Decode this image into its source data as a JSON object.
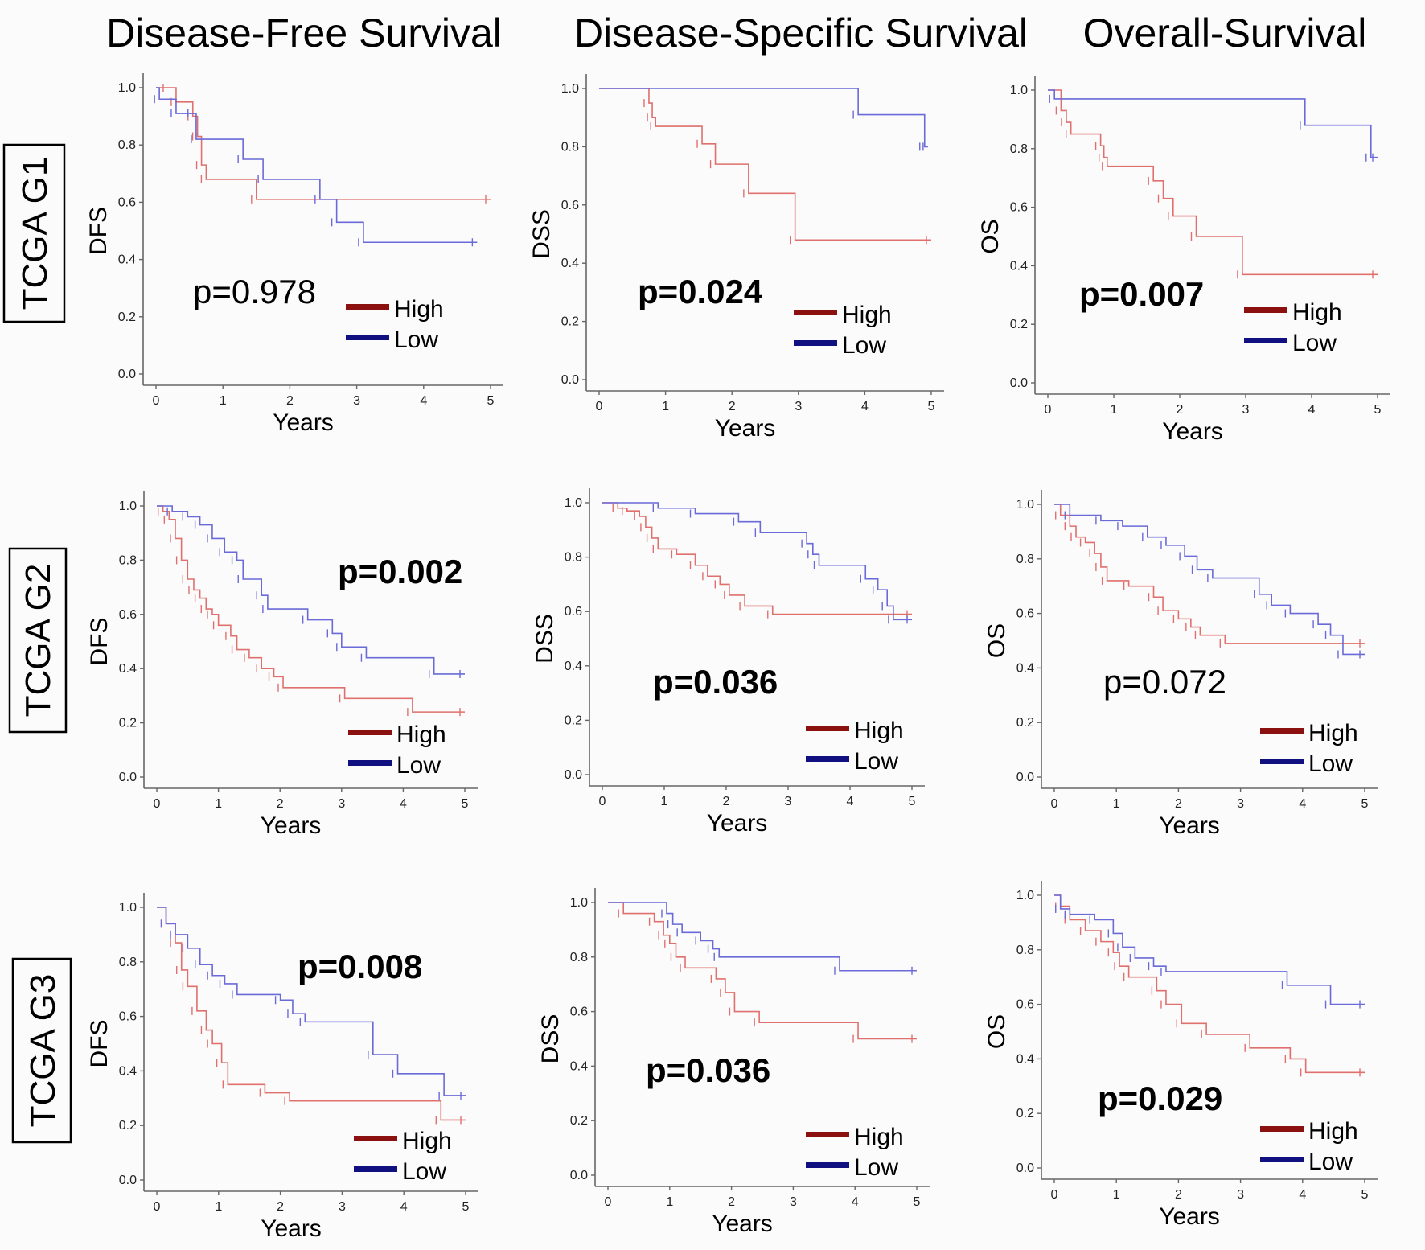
{
  "column_titles": [
    "Disease-Free Survival",
    "Disease-Specific Survival",
    "Overall-Survival"
  ],
  "row_labels": [
    "TCGA G1",
    "TCGA G2",
    "TCGA G3"
  ],
  "colors": {
    "high": "#e0706e",
    "low": "#6a6ad8",
    "legend_high": "#8b1010",
    "legend_low": "#101080"
  },
  "chart_data": [
    {
      "type": "line",
      "step": true,
      "row": "TCGA G1",
      "column": "Disease-Free Survival",
      "xlabel": "Years",
      "ylabel": "DFS",
      "xlim": [
        0,
        5
      ],
      "ylim": [
        0,
        1
      ],
      "xticks": [
        "0",
        "1",
        "2",
        "3",
        "4",
        "5"
      ],
      "yticks": [
        "0.0",
        "0.2",
        "0.4",
        "0.6",
        "0.8",
        "1.0"
      ],
      "annotation": "p=0.978",
      "annotation_bold": false,
      "legend": [
        "High",
        "Low"
      ],
      "legend_position": "bottom-right",
      "series": [
        {
          "name": "High",
          "x": [
            0,
            0.18,
            0.3,
            0.55,
            0.62,
            0.68,
            0.75,
            1.5,
            5.0
          ],
          "y": [
            1.0,
            1.0,
            0.95,
            0.9,
            0.83,
            0.73,
            0.68,
            0.61,
            0.61
          ]
        },
        {
          "name": "Low",
          "x": [
            0,
            0.05,
            0.3,
            0.55,
            0.6,
            1.3,
            1.6,
            2.45,
            2.7,
            3.1,
            4.8
          ],
          "y": [
            1.0,
            0.96,
            0.91,
            0.91,
            0.82,
            0.75,
            0.68,
            0.61,
            0.53,
            0.46,
            0.46
          ]
        }
      ]
    },
    {
      "type": "line",
      "step": true,
      "row": "TCGA G1",
      "column": "Disease-Specific Survival",
      "xlabel": "Years",
      "ylabel": "DSS",
      "xlim": [
        0,
        5
      ],
      "ylim": [
        0,
        1
      ],
      "xticks": [
        "0",
        "1",
        "2",
        "3",
        "4",
        "5"
      ],
      "yticks": [
        "0.0",
        "0.2",
        "0.4",
        "0.6",
        "0.8",
        "1.0"
      ],
      "annotation": "p=0.024",
      "annotation_bold": true,
      "legend": [
        "High",
        "Low"
      ],
      "legend_position": "bottom-right",
      "series": [
        {
          "name": "High",
          "x": [
            0,
            0.75,
            0.8,
            0.85,
            1.55,
            1.75,
            2.25,
            2.95,
            5.0
          ],
          "y": [
            1.0,
            0.95,
            0.9,
            0.87,
            0.81,
            0.74,
            0.64,
            0.48,
            0.48
          ]
        },
        {
          "name": "Low",
          "x": [
            0,
            3.9,
            4.9,
            4.95
          ],
          "y": [
            1.0,
            0.91,
            0.8,
            0.8
          ]
        }
      ]
    },
    {
      "type": "line",
      "step": true,
      "row": "TCGA G1",
      "column": "Overall-Survival",
      "xlabel": "Years",
      "ylabel": "OS",
      "xlim": [
        0,
        5
      ],
      "ylim": [
        0,
        1
      ],
      "xticks": [
        "0",
        "1",
        "2",
        "3",
        "4",
        "5"
      ],
      "yticks": [
        "0.0",
        "0.2",
        "0.4",
        "0.6",
        "0.8",
        "1.0"
      ],
      "annotation": "p=0.007",
      "annotation_bold": true,
      "legend": [
        "High",
        "Low"
      ],
      "legend_position": "bottom-right",
      "series": [
        {
          "name": "High",
          "x": [
            0,
            0.2,
            0.28,
            0.35,
            0.8,
            0.85,
            0.9,
            1.6,
            1.75,
            1.9,
            2.25,
            2.95,
            5.0
          ],
          "y": [
            1.0,
            0.93,
            0.89,
            0.85,
            0.81,
            0.77,
            0.74,
            0.69,
            0.63,
            0.57,
            0.5,
            0.37,
            0.37
          ]
        },
        {
          "name": "Low",
          "x": [
            0,
            0.1,
            3.9,
            4.9,
            5.0
          ],
          "y": [
            1.0,
            0.97,
            0.88,
            0.77,
            0.77
          ]
        }
      ]
    },
    {
      "type": "line",
      "step": true,
      "row": "TCGA G2",
      "column": "Disease-Free Survival",
      "xlabel": "Years",
      "ylabel": "DFS",
      "xlim": [
        0,
        5
      ],
      "ylim": [
        0,
        1
      ],
      "xticks": [
        "0",
        "1",
        "2",
        "3",
        "4",
        "5"
      ],
      "yticks": [
        "0.0",
        "0.2",
        "0.4",
        "0.6",
        "0.8",
        "1.0"
      ],
      "annotation": "p=0.002",
      "annotation_bold": true,
      "legend": [
        "High",
        "Low"
      ],
      "legend_position": "bottom-right",
      "series": [
        {
          "name": "High",
          "x": [
            0,
            0.1,
            0.2,
            0.3,
            0.4,
            0.5,
            0.6,
            0.7,
            0.8,
            0.9,
            1.0,
            1.2,
            1.3,
            1.5,
            1.7,
            1.9,
            2.05,
            3.05,
            4.15,
            5.0
          ],
          "y": [
            1.0,
            0.98,
            0.95,
            0.88,
            0.8,
            0.73,
            0.69,
            0.66,
            0.62,
            0.6,
            0.56,
            0.52,
            0.47,
            0.44,
            0.4,
            0.37,
            0.33,
            0.29,
            0.24,
            0.24
          ]
        },
        {
          "name": "Low",
          "x": [
            0,
            0.25,
            0.5,
            0.7,
            0.9,
            1.1,
            1.3,
            1.4,
            1.7,
            1.8,
            2.45,
            2.85,
            3.0,
            3.4,
            4.5,
            5.0
          ],
          "y": [
            1.0,
            0.98,
            0.96,
            0.93,
            0.88,
            0.83,
            0.8,
            0.73,
            0.67,
            0.62,
            0.58,
            0.53,
            0.48,
            0.44,
            0.38,
            0.38
          ]
        }
      ]
    },
    {
      "type": "line",
      "step": true,
      "row": "TCGA G2",
      "column": "Disease-Specific Survival",
      "xlabel": "Years",
      "ylabel": "DSS",
      "xlim": [
        0,
        5
      ],
      "ylim": [
        0,
        1
      ],
      "xticks": [
        "0",
        "1",
        "2",
        "3",
        "4",
        "5"
      ],
      "yticks": [
        "0.0",
        "0.2",
        "0.4",
        "0.6",
        "0.8",
        "1.0"
      ],
      "annotation": "p=0.036",
      "annotation_bold": true,
      "legend": [
        "High",
        "Low"
      ],
      "legend_position": "bottom-right",
      "series": [
        {
          "name": "High",
          "x": [
            0,
            0.25,
            0.4,
            0.6,
            0.7,
            0.8,
            0.9,
            1.2,
            1.5,
            1.7,
            1.9,
            2.05,
            2.3,
            2.75,
            5.0
          ],
          "y": [
            1.0,
            0.98,
            0.97,
            0.95,
            0.91,
            0.87,
            0.83,
            0.81,
            0.77,
            0.73,
            0.7,
            0.66,
            0.62,
            0.59,
            0.59
          ]
        },
        {
          "name": "Low",
          "x": [
            0,
            0.9,
            1.5,
            2.2,
            2.55,
            3.3,
            3.4,
            3.5,
            4.25,
            4.45,
            4.6,
            4.7,
            5.0
          ],
          "y": [
            1.0,
            0.98,
            0.96,
            0.93,
            0.89,
            0.85,
            0.81,
            0.77,
            0.72,
            0.68,
            0.62,
            0.57,
            0.57
          ]
        }
      ]
    },
    {
      "type": "line",
      "step": true,
      "row": "TCGA G2",
      "column": "Overall-Survival",
      "xlabel": "Years",
      "ylabel": "OS",
      "xlim": [
        0,
        5
      ],
      "ylim": [
        0,
        1
      ],
      "xticks": [
        "0",
        "1",
        "2",
        "3",
        "4",
        "5"
      ],
      "yticks": [
        "0.0",
        "0.2",
        "0.4",
        "0.6",
        "0.8",
        "1.0"
      ],
      "annotation": "p=0.072",
      "annotation_bold": false,
      "legend": [
        "High",
        "Low"
      ],
      "legend_position": "bottom-right",
      "series": [
        {
          "name": "High",
          "x": [
            0,
            0.1,
            0.25,
            0.35,
            0.5,
            0.65,
            0.75,
            0.85,
            1.2,
            1.6,
            1.75,
            2.0,
            2.2,
            2.35,
            2.75,
            5.0
          ],
          "y": [
            1.0,
            0.96,
            0.92,
            0.88,
            0.86,
            0.82,
            0.77,
            0.72,
            0.7,
            0.66,
            0.61,
            0.58,
            0.55,
            0.52,
            0.49,
            0.49
          ]
        },
        {
          "name": "Low",
          "x": [
            0,
            0.25,
            0.75,
            1.1,
            1.5,
            1.8,
            2.1,
            2.3,
            2.55,
            3.3,
            3.5,
            3.8,
            4.25,
            4.45,
            4.65,
            5.0
          ],
          "y": [
            1.0,
            0.96,
            0.94,
            0.92,
            0.88,
            0.85,
            0.81,
            0.76,
            0.73,
            0.67,
            0.63,
            0.6,
            0.56,
            0.52,
            0.45,
            0.45
          ]
        }
      ]
    },
    {
      "type": "line",
      "step": true,
      "row": "TCGA G3",
      "column": "Disease-Free Survival",
      "xlabel": "Years",
      "ylabel": "DFS",
      "xlim": [
        0,
        5
      ],
      "ylim": [
        0,
        1
      ],
      "xticks": [
        "0",
        "1",
        "2",
        "3",
        "4",
        "5"
      ],
      "yticks": [
        "0.0",
        "0.2",
        "0.4",
        "0.6",
        "0.8",
        "1.0"
      ],
      "annotation": "p=0.008",
      "annotation_bold": true,
      "legend": [
        "High",
        "Low"
      ],
      "legend_position": "bottom-right",
      "series": [
        {
          "name": "High",
          "x": [
            0,
            0.15,
            0.3,
            0.4,
            0.5,
            0.65,
            0.8,
            0.9,
            1.05,
            1.15,
            1.75,
            2.15,
            4.6,
            5.0
          ],
          "y": [
            1.0,
            0.94,
            0.87,
            0.77,
            0.71,
            0.62,
            0.55,
            0.5,
            0.43,
            0.35,
            0.32,
            0.29,
            0.22,
            0.22
          ]
        },
        {
          "name": "Low",
          "x": [
            0,
            0.15,
            0.3,
            0.5,
            0.7,
            0.9,
            1.1,
            1.3,
            2.0,
            2.2,
            2.4,
            3.5,
            3.9,
            4.65,
            5.0
          ],
          "y": [
            1.0,
            0.94,
            0.9,
            0.85,
            0.79,
            0.75,
            0.72,
            0.68,
            0.66,
            0.61,
            0.58,
            0.46,
            0.39,
            0.31,
            0.31
          ]
        }
      ]
    },
    {
      "type": "line",
      "step": true,
      "row": "TCGA G3",
      "column": "Disease-Specific Survival",
      "xlabel": "Years",
      "ylabel": "DSS",
      "xlim": [
        0,
        5
      ],
      "ylim": [
        0,
        1
      ],
      "xticks": [
        "0",
        "1",
        "2",
        "3",
        "4",
        "5"
      ],
      "yticks": [
        "0.0",
        "0.2",
        "0.4",
        "0.6",
        "0.8",
        "1.0"
      ],
      "annotation": "p=0.036",
      "annotation_bold": true,
      "legend": [
        "High",
        "Low"
      ],
      "legend_position": "bottom-right",
      "series": [
        {
          "name": "High",
          "x": [
            0,
            0.25,
            0.75,
            0.9,
            1.0,
            1.1,
            1.25,
            1.75,
            1.9,
            2.05,
            2.45,
            4.05,
            5.0
          ],
          "y": [
            1.0,
            0.96,
            0.93,
            0.88,
            0.85,
            0.8,
            0.76,
            0.72,
            0.67,
            0.6,
            0.56,
            0.5,
            0.5
          ]
        },
        {
          "name": "Low",
          "x": [
            0,
            0.95,
            1.05,
            1.2,
            1.5,
            1.7,
            1.8,
            3.75,
            5.0
          ],
          "y": [
            1.0,
            0.96,
            0.92,
            0.89,
            0.86,
            0.83,
            0.8,
            0.75,
            0.75
          ]
        }
      ]
    },
    {
      "type": "line",
      "step": true,
      "row": "TCGA G3",
      "column": "Overall-Survival",
      "xlabel": "Years",
      "ylabel": "OS",
      "xlim": [
        0,
        5
      ],
      "ylim": [
        0,
        1
      ],
      "xticks": [
        "0",
        "1",
        "2",
        "3",
        "4",
        "5"
      ],
      "yticks": [
        "0.0",
        "0.2",
        "0.4",
        "0.6",
        "0.8",
        "1.0"
      ],
      "annotation": "p=0.029",
      "annotation_bold": true,
      "legend": [
        "High",
        "Low"
      ],
      "legend_position": "bottom-right",
      "series": [
        {
          "name": "High",
          "x": [
            0,
            0.1,
            0.25,
            0.5,
            0.75,
            0.95,
            1.05,
            1.2,
            1.65,
            1.8,
            2.05,
            2.45,
            3.15,
            3.8,
            4.05,
            5.0
          ],
          "y": [
            1.0,
            0.96,
            0.91,
            0.87,
            0.83,
            0.79,
            0.74,
            0.7,
            0.65,
            0.6,
            0.53,
            0.49,
            0.44,
            0.4,
            0.35,
            0.35
          ]
        },
        {
          "name": "Low",
          "x": [
            0,
            0.1,
            0.25,
            0.65,
            0.95,
            1.1,
            1.3,
            1.6,
            1.8,
            3.75,
            4.45,
            5.0
          ],
          "y": [
            1.0,
            0.95,
            0.93,
            0.91,
            0.86,
            0.81,
            0.77,
            0.74,
            0.72,
            0.67,
            0.6,
            0.6
          ]
        }
      ]
    }
  ]
}
